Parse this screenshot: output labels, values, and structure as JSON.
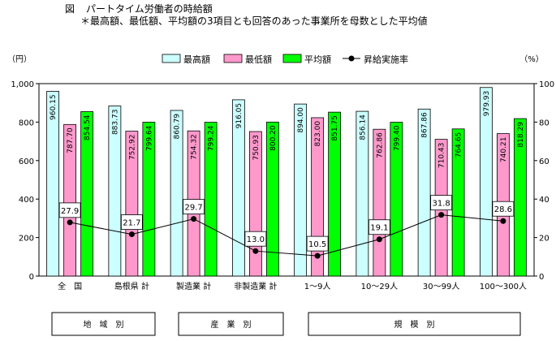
{
  "figure": {
    "label": "図",
    "title": "パートタイム労働者の時給額",
    "subtitle": "＊最高額、最低額、平均額の3項目とも回答のあった事業所を母数とした平均値"
  },
  "colors": {
    "max": "#ccffff",
    "min": "#ff99cc",
    "avg": "#00ff00",
    "line": "#000000"
  },
  "chart_data": {
    "type": "bar",
    "categories": [
      "全　国",
      "島根県 計",
      "製造業 計",
      "非製造業 計",
      "1～9人",
      "10～29人",
      "30～99人",
      "100～300人"
    ],
    "series": [
      {
        "name": "最高額",
        "values": [
          960.15,
          883.73,
          860.79,
          916.05,
          894.0,
          856.14,
          867.86,
          979.93
        ],
        "labels": [
          "960.15",
          "883.73",
          "860.79",
          "916.05",
          "894.00",
          "856.14",
          "867.86",
          "979.93"
        ]
      },
      {
        "name": "最低額",
        "values": [
          787.7,
          752.92,
          754.32,
          750.93,
          823.0,
          762.86,
          710.43,
          740.21
        ],
        "labels": [
          "787.70",
          "752.92",
          "754.32",
          "750.93",
          "823.00",
          "762.86",
          "710.43",
          "740.21"
        ]
      },
      {
        "name": "平均額",
        "values": [
          854.54,
          799.64,
          799.24,
          800.2,
          851.75,
          799.4,
          764.65,
          818.29
        ],
        "labels": [
          "854.54",
          "799.64",
          "799.24",
          "800.20",
          "851.75",
          "799.40",
          "764.65",
          "818.29"
        ]
      }
    ],
    "line_series": {
      "name": "昇給実施率",
      "values": [
        27.9,
        21.7,
        29.7,
        13.0,
        10.5,
        19.1,
        31.8,
        28.6
      ],
      "labels": [
        "27.9",
        "21.7",
        "29.7",
        "13.0",
        "10.5",
        "19.1",
        "31.8",
        "28.6"
      ]
    },
    "y_left": {
      "unit": "（円）",
      "min": 0,
      "max": 1000,
      "ticks": [
        "0",
        "200",
        "400",
        "600",
        "800",
        "1,000"
      ]
    },
    "y_right": {
      "unit": "（%）",
      "min": 0,
      "max": 100,
      "ticks": [
        "0",
        "20",
        "40",
        "60",
        "80",
        "100"
      ]
    },
    "groups": [
      "地　域　別",
      "産　業　別",
      "規　模　別"
    ],
    "legend": "top"
  }
}
